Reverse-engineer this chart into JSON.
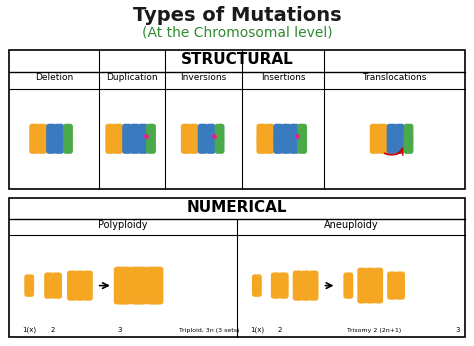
{
  "title": "Types of Mutations",
  "subtitle": "(At the Chromosomal level)",
  "title_color": "#1a1a1a",
  "subtitle_color": "#2e8b2e",
  "bg_color": "#ffffff",
  "structural_label": "STRUCTURAL",
  "numerical_label": "NUMERICAL",
  "structural_cols": [
    "Deletion",
    "Duplication",
    "Inversions",
    "Insertions",
    "Translocations"
  ],
  "numerical_cols": [
    "Polyploidy",
    "Aneuploidy"
  ],
  "orange": "#f5a623",
  "blue": "#3a7abf",
  "green": "#4aaa4a",
  "pink": "#e91e8c",
  "red": "#cc0000",
  "black": "#222222",
  "light_orange": "#f5a623"
}
